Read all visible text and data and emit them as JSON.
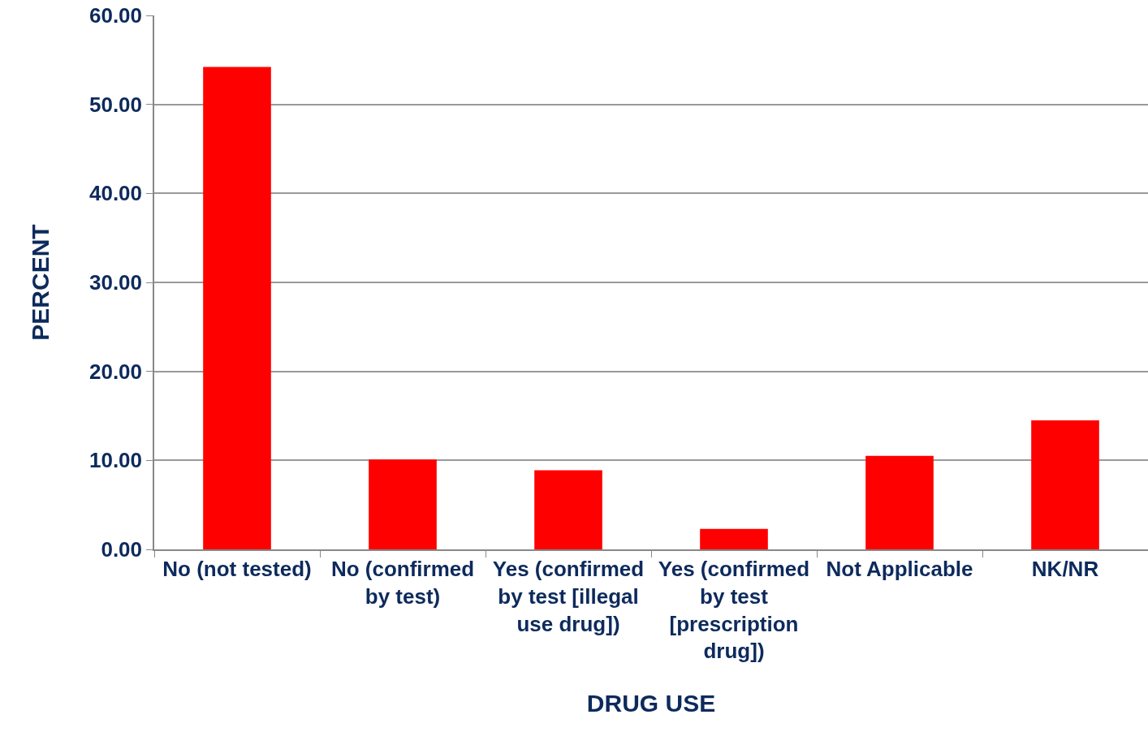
{
  "chart_data": {
    "type": "bar",
    "xlabel": "DRUG USE",
    "ylabel": "PERCENT",
    "categories": [
      "No (not tested)",
      "No (confirmed\nby test)",
      "Yes (confirmed\nby test [illegal\nuse drug])",
      "Yes (confirmed\nby test\n[prescription\ndrug])",
      "Not Applicable",
      "NK/NR"
    ],
    "values": [
      54.2,
      10.1,
      8.9,
      2.3,
      10.5,
      14.5
    ],
    "color": "#ff0000",
    "ylim": [
      0,
      60
    ],
    "yticks": [
      {
        "value": 0,
        "label": "0.00"
      },
      {
        "value": 10,
        "label": "10.00"
      },
      {
        "value": 20,
        "label": "20.00"
      },
      {
        "value": 30,
        "label": "30.00"
      },
      {
        "value": 40,
        "label": "40.00"
      },
      {
        "value": 50,
        "label": "50.00"
      },
      {
        "value": 60,
        "label": "60.00"
      }
    ],
    "grid": "y",
    "legend": false
  }
}
